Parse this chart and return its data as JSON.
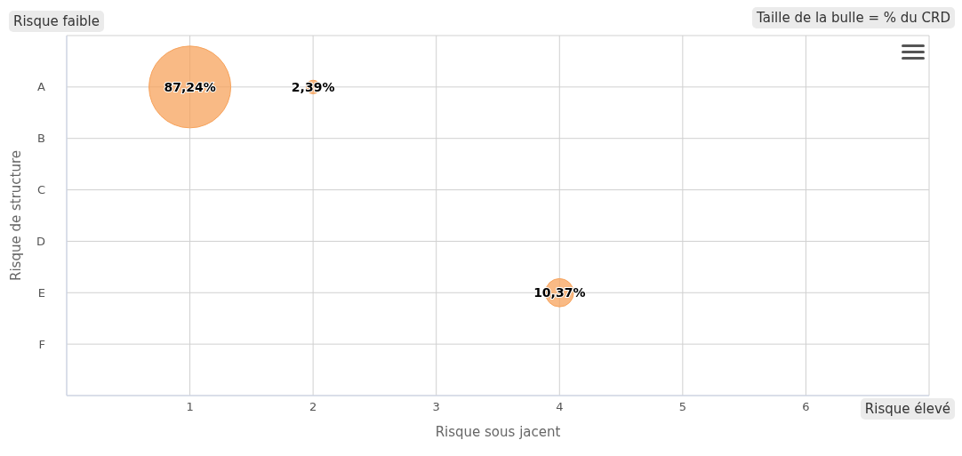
{
  "chart_data": {
    "type": "bubble",
    "orientation": "horizontal",
    "xlabel": "Risque sous jacent",
    "ylabel": "Risque de structure",
    "annotations": [
      "Risque faible",
      "Taille de la bulle = % du CRD",
      "Risque élevé",
      {
        "text": "87,24%",
        "x": 1,
        "y": "A"
      },
      {
        "text": "2,39%",
        "x": 2,
        "y": "A"
      },
      {
        "text": "10,37%",
        "x": 4,
        "y": "E"
      }
    ],
    "categories": [
      "A",
      "B",
      "C",
      "D",
      "E",
      "F"
    ],
    "series": [
      {
        "color": "#f7a35c",
        "values": [
          1,
          null,
          null,
          null,
          4,
          null
        ],
        "sizes": [
          1,
          null,
          null,
          null,
          0.1189,
          null
        ]
      },
      {
        "color": "#f7a35c",
        "values": [
          2,
          null,
          null,
          null,
          null,
          null
        ],
        "sizes": [
          0.0274,
          null,
          null,
          null,
          null,
          null
        ]
      }
    ],
    "xlim": [
      0,
      7
    ],
    "xticks": [
      {
        "value": 0,
        "label": null
      },
      1,
      2,
      3,
      4,
      5,
      6,
      {
        "value": 7,
        "label": null
      }
    ],
    "grid": true
  }
}
